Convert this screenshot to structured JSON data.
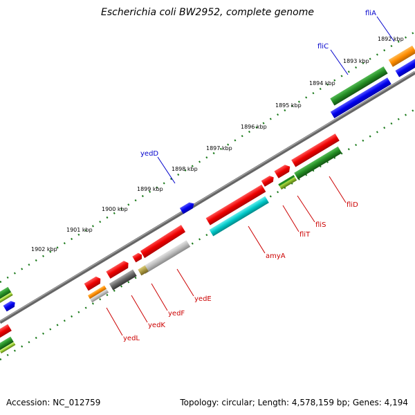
{
  "title": "Escherichia coli BW2952, complete genome",
  "accession": "Accession: NC_012759",
  "summary": "Topology: circular; Length: 4,578,159 bp; Genes: 4,194",
  "kbp_labels": [
    "1892 kbp",
    "1893 kbp",
    "1894 kbp",
    "1895 kbp",
    "1896 kbp",
    "1897 kbp",
    "1898 kbp",
    "1899 kbp",
    "1900 kbp",
    "1901 kbp",
    "1902 kbp"
  ],
  "gene_labels": [
    {
      "text": "fliA",
      "color": "#0000cc"
    },
    {
      "text": "fliC",
      "color": "#0000cc"
    },
    {
      "text": "yedD",
      "color": "#0000cc"
    },
    {
      "text": "fliD",
      "color": "#cc0000"
    },
    {
      "text": "fliS",
      "color": "#cc0000"
    },
    {
      "text": "fliT",
      "color": "#cc0000"
    },
    {
      "text": "amyA",
      "color": "#cc0000"
    },
    {
      "text": "yedE",
      "color": "#cc0000"
    },
    {
      "text": "yedF",
      "color": "#cc0000"
    },
    {
      "text": "yedK",
      "color": "#cc0000"
    },
    {
      "text": "yedL",
      "color": "#cc0000"
    }
  ],
  "colors": {
    "red": "#ee0000",
    "green": "#228b22",
    "blue": "#0000ee",
    "orange": "#ff8c00",
    "cyan": "#00c8c8",
    "gray": "#777777",
    "lightgray": "#bbbbbb",
    "lime": "#99cc33"
  }
}
